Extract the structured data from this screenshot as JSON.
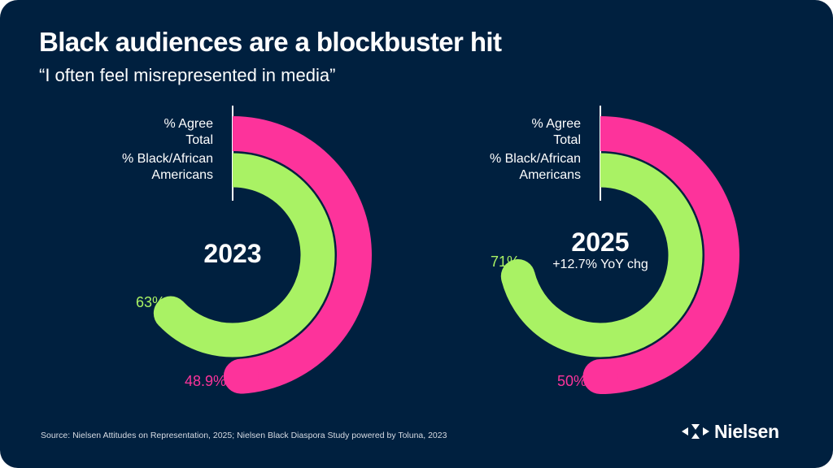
{
  "header": {
    "title": "Black audiences are a blockbuster hit",
    "subtitle": "“I often feel misrepresented in media”"
  },
  "colors": {
    "background": "#00203f",
    "total": "#fd339b",
    "black_african_americans": "#a9f264",
    "text": "#ffffff"
  },
  "chart_data": [
    {
      "type": "radial-bar",
      "title": "2023",
      "subtitle": "",
      "legend": [
        "% Agree Total",
        "% Black/African Americans"
      ],
      "legend_lines": [
        [
          "% Agree",
          "Total"
        ],
        [
          "% Black/African",
          "Americans"
        ]
      ],
      "series": [
        {
          "name": "% Agree Total",
          "value": 48.9,
          "label": "48.9%",
          "color": "#fd339b"
        },
        {
          "name": "% Black/African Americans",
          "value": 63,
          "label": "63%",
          "color": "#a9f264"
        }
      ],
      "scale_max": 100
    },
    {
      "type": "radial-bar",
      "title": "2025",
      "subtitle": "+12.7% YoY chg",
      "legend": [
        "% Agree Total",
        "% Black/African Americans"
      ],
      "legend_lines": [
        [
          "% Agree",
          "Total"
        ],
        [
          "% Black/African",
          "Americans"
        ]
      ],
      "series": [
        {
          "name": "% Agree Total",
          "value": 50,
          "label": "50%",
          "color": "#fd339b"
        },
        {
          "name": "% Black/African Americans",
          "value": 71,
          "label": "71%",
          "color": "#a9f264"
        }
      ],
      "scale_max": 100
    }
  ],
  "footer": {
    "source": "Source: Nielsen Attitudes on Representation, 2025; Nielsen Black Diaspora Study powered by Toluna, 2023",
    "logo_text": "Nielsen",
    "logo_icon": "nielsen-triangles-icon"
  }
}
